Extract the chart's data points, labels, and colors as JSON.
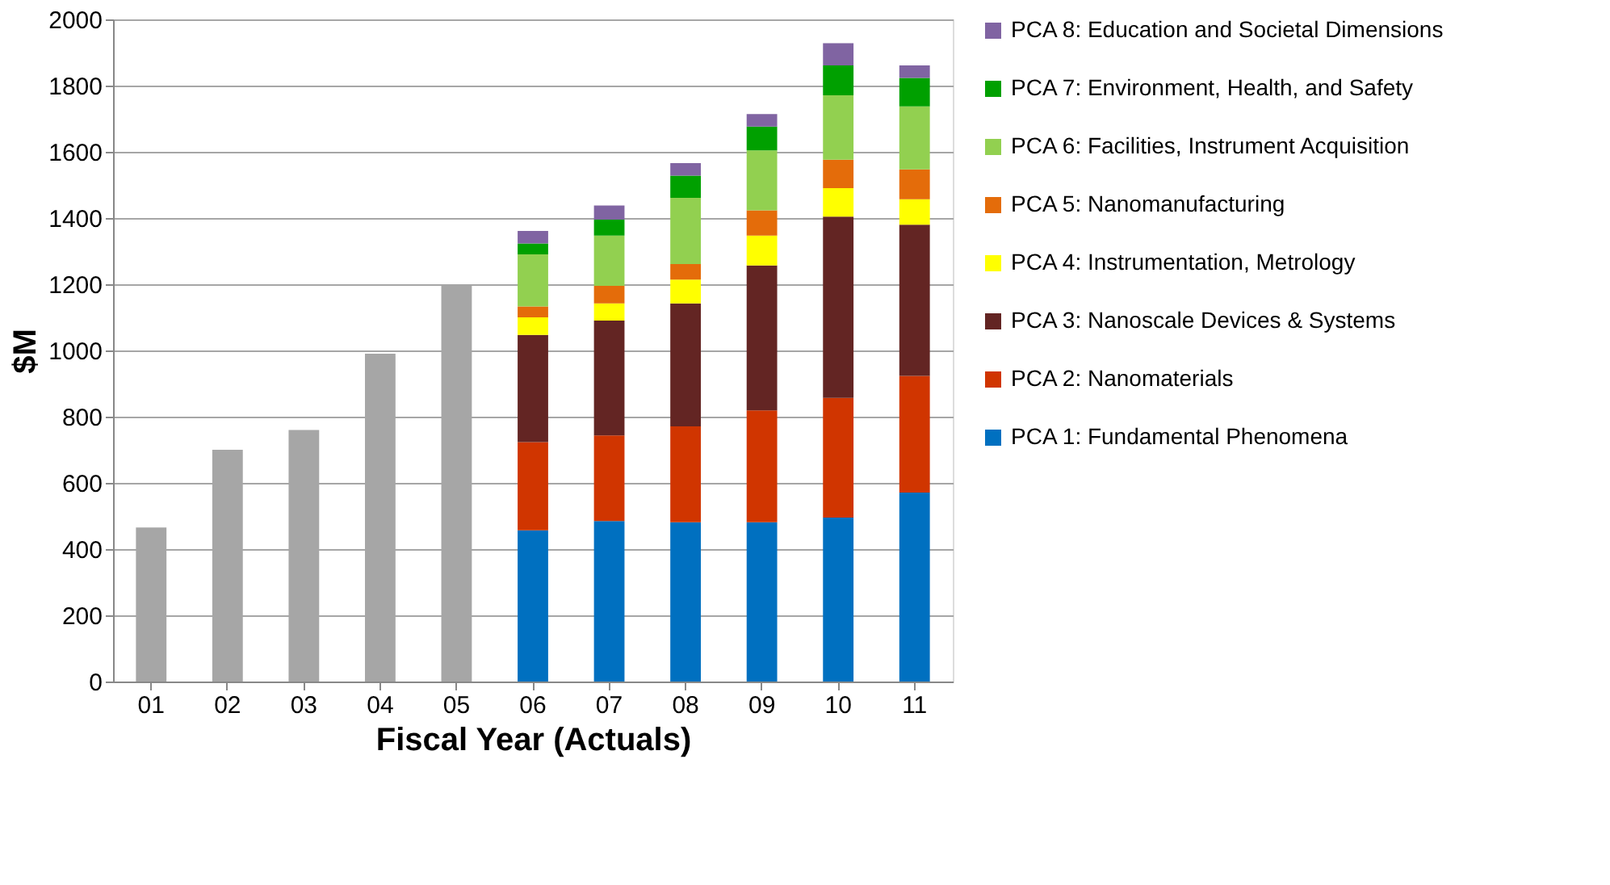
{
  "chart_data": {
    "type": "bar",
    "stacked": true,
    "xlabel": "Fiscal Year (Actuals)",
    "ylabel": "$M",
    "categories": [
      "01",
      "02",
      "03",
      "04",
      "05",
      "06",
      "07",
      "08",
      "09",
      "10",
      "11"
    ],
    "series": [
      {
        "color": "#a6a6a6",
        "values": [
          465,
          700,
          760,
          990,
          1200,
          null,
          null,
          null,
          null,
          null,
          null
        ]
      },
      {
        "name": "PCA 1: Fundamental Phenomena",
        "color": "#0070c0",
        "values": [
          null,
          null,
          null,
          null,
          null,
          457,
          485,
          481,
          481,
          495,
          571
        ]
      },
      {
        "name": "PCA 2: Nanomaterials",
        "color": "#d03500",
        "values": [
          null,
          null,
          null,
          null,
          null,
          266,
          258,
          290,
          338,
          362,
          352
        ]
      },
      {
        "name": "PCA 3: Nanoscale Devices & Systems",
        "color": "#632523",
        "values": [
          null,
          null,
          null,
          null,
          null,
          324,
          347,
          371,
          438,
          547,
          457
        ]
      },
      {
        "name": "PCA 4: Instrumentation, Metrology",
        "color": "#ffff00",
        "values": [
          null,
          null,
          null,
          null,
          null,
          53,
          52,
          72,
          90,
          86,
          77
        ]
      },
      {
        "name": "PCA 5: Nanomanufacturing",
        "color": "#e46c0a",
        "values": [
          null,
          null,
          null,
          null,
          null,
          33,
          53,
          47,
          76,
          86,
          90
        ]
      },
      {
        "name": "PCA 6: Facilities, Instrument Acquisition",
        "color": "#92d050",
        "values": [
          null,
          null,
          null,
          null,
          null,
          157,
          152,
          200,
          181,
          195,
          190
        ]
      },
      {
        "name": "PCA 7: Environment, Health, and Safety",
        "color": "#00a000",
        "values": [
          null,
          null,
          null,
          null,
          null,
          33,
          48,
          67,
          72,
          90,
          86
        ]
      },
      {
        "name": "PCA 8: Education and Societal Dimensions",
        "color": "#8064a2",
        "values": [
          null,
          null,
          null,
          null,
          null,
          38,
          43,
          38,
          38,
          67,
          38
        ]
      }
    ],
    "ylim": [
      0,
      2000
    ],
    "yticks": [
      0,
      200,
      400,
      600,
      800,
      1000,
      1200,
      1400,
      1600,
      1800,
      2000
    ],
    "grid": "y",
    "legend": "right"
  }
}
